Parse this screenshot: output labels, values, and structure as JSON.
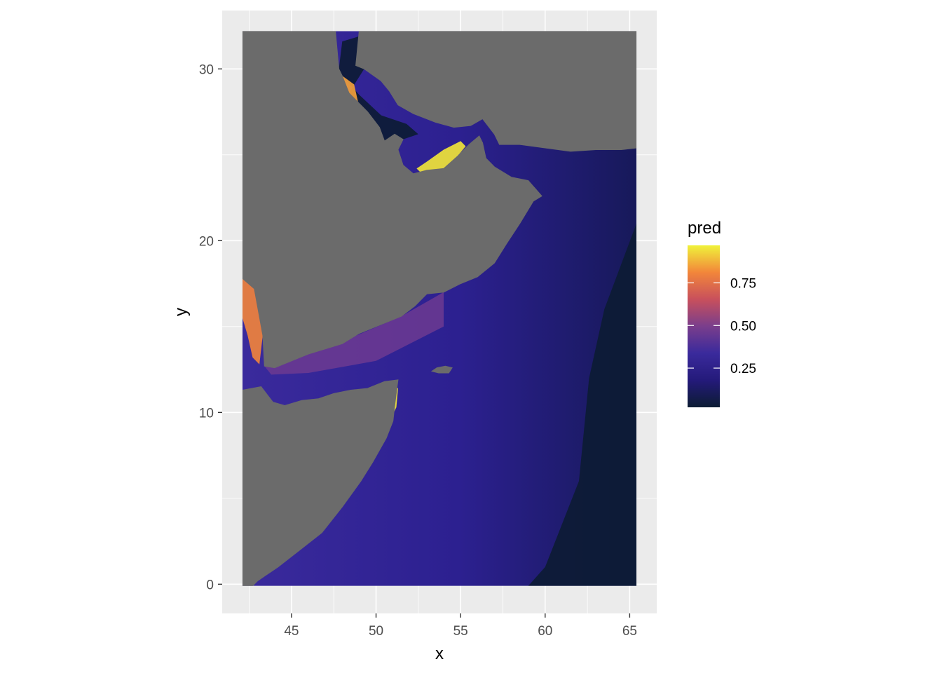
{
  "chart_data": {
    "type": "heatmap",
    "title": "",
    "xlabel": "x",
    "ylabel": "y",
    "xlim": [
      40.9,
      66.6
    ],
    "ylim": [
      -1.7,
      33.4
    ],
    "x_ticks": [
      45,
      50,
      55,
      60,
      65
    ],
    "y_ticks": [
      0,
      10,
      20,
      30
    ],
    "x_tick_labels": [
      "45",
      "50",
      "55",
      "60",
      "65"
    ],
    "y_tick_labels": [
      "0",
      "10",
      "20",
      "30"
    ],
    "grid": true,
    "raster_extent": {
      "x": [
        42.1,
        65.4
      ],
      "y": [
        -0.1,
        32.2
      ]
    },
    "land_color": "#6b6b6b",
    "legend": {
      "title": "pred",
      "position": "right",
      "range": [
        0.02,
        0.97
      ],
      "breaks": [
        0.25,
        0.5,
        0.75
      ],
      "break_labels": [
        "0.25",
        "0.50",
        "0.75"
      ],
      "colors": [
        "#0c1c33",
        "#241a7a",
        "#3a2a9c",
        "#7a3e8c",
        "#c8505c",
        "#f2863a",
        "#f0f23a"
      ]
    },
    "land_polygons": [
      {
        "name": "arabian-peninsula",
        "points": [
          [
            42.1,
            17.8
          ],
          [
            42.8,
            17.2
          ],
          [
            43.3,
            14.5
          ],
          [
            43.4,
            12.7
          ],
          [
            44.0,
            12.6
          ],
          [
            45.0,
            13.0
          ],
          [
            46.0,
            13.4
          ],
          [
            47.0,
            13.7
          ],
          [
            48.0,
            14.0
          ],
          [
            49.0,
            14.6
          ],
          [
            50.5,
            15.2
          ],
          [
            51.5,
            15.6
          ],
          [
            52.3,
            16.2
          ],
          [
            53.0,
            16.9
          ],
          [
            54.0,
            17.0
          ],
          [
            55.0,
            17.5
          ],
          [
            56.0,
            17.9
          ],
          [
            57.0,
            18.7
          ],
          [
            57.7,
            19.8
          ],
          [
            58.5,
            21.0
          ],
          [
            59.3,
            22.3
          ],
          [
            59.8,
            22.6
          ],
          [
            59.0,
            23.5
          ],
          [
            58.0,
            23.7
          ],
          [
            57.0,
            24.3
          ],
          [
            56.5,
            24.8
          ],
          [
            56.3,
            25.7
          ],
          [
            56.1,
            26.1
          ],
          [
            55.5,
            25.6
          ],
          [
            54.8,
            24.9
          ],
          [
            54.0,
            24.2
          ],
          [
            53.0,
            24.1
          ],
          [
            52.2,
            23.9
          ],
          [
            51.6,
            24.4
          ],
          [
            51.3,
            25.3
          ],
          [
            51.6,
            25.9
          ],
          [
            51.1,
            26.2
          ],
          [
            50.5,
            25.8
          ],
          [
            50.2,
            26.6
          ],
          [
            49.5,
            27.5
          ],
          [
            48.4,
            28.6
          ],
          [
            48.0,
            29.6
          ],
          [
            47.8,
            30.0
          ],
          [
            47.6,
            32.2
          ],
          [
            42.1,
            32.2
          ]
        ]
      },
      {
        "name": "iran",
        "points": [
          [
            49.0,
            32.2
          ],
          [
            48.8,
            30.2
          ],
          [
            49.3,
            30.0
          ],
          [
            50.3,
            29.3
          ],
          [
            50.8,
            28.7
          ],
          [
            51.3,
            27.9
          ],
          [
            52.2,
            27.4
          ],
          [
            53.5,
            26.9
          ],
          [
            54.6,
            26.6
          ],
          [
            55.6,
            26.7
          ],
          [
            56.3,
            27.1
          ],
          [
            57.0,
            26.2
          ],
          [
            57.3,
            25.6
          ],
          [
            58.5,
            25.6
          ],
          [
            60.0,
            25.4
          ],
          [
            61.5,
            25.2
          ],
          [
            63.0,
            25.3
          ],
          [
            64.5,
            25.3
          ],
          [
            65.4,
            25.4
          ],
          [
            65.4,
            32.2
          ]
        ]
      },
      {
        "name": "horn-of-africa",
        "points": [
          [
            42.1,
            11.3
          ],
          [
            43.2,
            11.5
          ],
          [
            43.9,
            10.6
          ],
          [
            44.6,
            10.4
          ],
          [
            45.6,
            10.7
          ],
          [
            46.6,
            10.8
          ],
          [
            47.5,
            11.1
          ],
          [
            48.5,
            11.3
          ],
          [
            49.5,
            11.4
          ],
          [
            50.5,
            11.8
          ],
          [
            51.3,
            11.9
          ],
          [
            51.1,
            10.4
          ],
          [
            51.0,
            9.5
          ],
          [
            50.6,
            8.5
          ],
          [
            49.8,
            7.1
          ],
          [
            49.1,
            6.0
          ],
          [
            48.0,
            4.5
          ],
          [
            46.8,
            3.0
          ],
          [
            45.5,
            2.0
          ],
          [
            44.2,
            1.0
          ],
          [
            43.0,
            0.2
          ],
          [
            42.7,
            -0.1
          ],
          [
            42.1,
            -0.1
          ]
        ]
      },
      {
        "name": "socotra",
        "points": [
          [
            53.3,
            12.4
          ],
          [
            53.6,
            12.6
          ],
          [
            54.1,
            12.7
          ],
          [
            54.5,
            12.6
          ],
          [
            54.3,
            12.3
          ],
          [
            53.7,
            12.3
          ]
        ]
      }
    ],
    "highlights": [
      {
        "name": "uae-coast-hotspot",
        "level": 0.95,
        "points": [
          [
            52.6,
            24.0
          ],
          [
            53.4,
            24.0
          ],
          [
            54.2,
            24.3
          ],
          [
            54.8,
            24.9
          ],
          [
            55.3,
            25.5
          ],
          [
            55.0,
            25.8
          ],
          [
            54.0,
            25.3
          ],
          [
            53.0,
            24.6
          ],
          [
            52.4,
            24.2
          ]
        ]
      },
      {
        "name": "kuwait-coast-hotspot",
        "level": 0.85,
        "points": [
          [
            48.0,
            29.6
          ],
          [
            48.3,
            28.4
          ],
          [
            49.0,
            27.8
          ],
          [
            48.7,
            29.1
          ]
        ]
      },
      {
        "name": "bahrain-qatar-hotspot",
        "level": 0.7,
        "points": [
          [
            50.5,
            25.8
          ],
          [
            51.1,
            26.2
          ],
          [
            51.6,
            25.9
          ],
          [
            51.3,
            25.3
          ],
          [
            50.8,
            25.5
          ]
        ]
      },
      {
        "name": "red-sea-hotspot",
        "level": 0.8,
        "points": [
          [
            42.1,
            17.8
          ],
          [
            42.8,
            17.2
          ],
          [
            43.3,
            14.5
          ],
          [
            43.1,
            12.8
          ],
          [
            42.7,
            13.2
          ],
          [
            42.4,
            14.5
          ],
          [
            42.1,
            15.5
          ]
        ]
      },
      {
        "name": "oman-coast-hotspot",
        "level": 0.7,
        "points": [
          [
            57.7,
            19.8
          ],
          [
            58.5,
            21.0
          ],
          [
            58.7,
            21.4
          ],
          [
            58.0,
            20.6
          ],
          [
            57.5,
            19.9
          ]
        ]
      },
      {
        "name": "somali-coast-hotspot",
        "level": 0.95,
        "points": [
          [
            51.2,
            10.3
          ],
          [
            51.3,
            11.4
          ],
          [
            51.0,
            11.6
          ],
          [
            50.6,
            10.2
          ],
          [
            50.8,
            9.5
          ]
        ]
      },
      {
        "name": "gulf-of-aden-glow",
        "level": 0.45,
        "points": [
          [
            43.4,
            12.7
          ],
          [
            47.0,
            13.7
          ],
          [
            51.5,
            15.6
          ],
          [
            54.0,
            17.0
          ],
          [
            54.0,
            15.0
          ],
          [
            50.0,
            13.0
          ],
          [
            46.0,
            12.3
          ],
          [
            43.8,
            12.2
          ]
        ]
      }
    ],
    "dark_zones": [
      {
        "name": "northern-gulf-deep",
        "level": 0.02,
        "points": [
          [
            47.8,
            30.0
          ],
          [
            48.0,
            29.6
          ],
          [
            49.0,
            28.5
          ],
          [
            50.3,
            27.3
          ],
          [
            51.8,
            26.8
          ],
          [
            52.5,
            26.2
          ],
          [
            51.6,
            25.9
          ],
          [
            51.1,
            26.2
          ],
          [
            50.5,
            25.8
          ],
          [
            50.2,
            26.6
          ],
          [
            49.5,
            27.5
          ],
          [
            48.4,
            28.6
          ],
          [
            49.3,
            30.0
          ],
          [
            49.0,
            31.9
          ],
          [
            48.0,
            31.6
          ]
        ]
      },
      {
        "name": "eastern-basin",
        "level": 0.02,
        "points": [
          [
            65.4,
            21.0
          ],
          [
            63.5,
            16.0
          ],
          [
            62.6,
            12.0
          ],
          [
            62.0,
            6.0
          ],
          [
            60.0,
            1.0
          ],
          [
            59.0,
            -0.1
          ],
          [
            65.4,
            -0.1
          ]
        ]
      }
    ]
  }
}
